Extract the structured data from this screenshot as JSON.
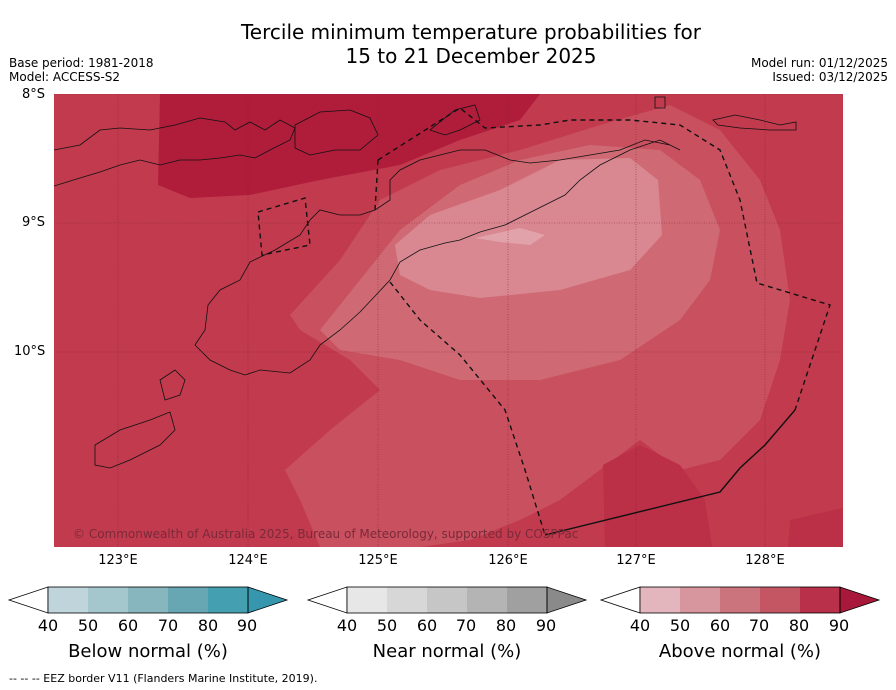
{
  "title": {
    "line1": "Tercile minimum temperature probabilities for",
    "line2": "15 to 21 December 2025"
  },
  "meta": {
    "base_period": "Base period: 1981-2018",
    "model": "Model: ACCESS-S2",
    "model_run": "Model run: 01/12/2025",
    "issued": "Issued: 03/12/2025"
  },
  "map": {
    "lat_labels": [
      "8°S",
      "9°S",
      "10°S"
    ],
    "lon_labels": [
      "123°E",
      "124°E",
      "125°E",
      "126°E",
      "127°E",
      "128°E"
    ],
    "copyright": "© Commonwealth of Australia 2025, Bureau of Meteorology, supported by COSPPac",
    "colors": {
      "ocean_base": "#c13a4d",
      "darker": "#b01d3b",
      "pink_mid": "#c9505f",
      "pink_light": "#cf6a74",
      "pink_lightest": "#d98892"
    }
  },
  "colorbars": [
    {
      "label": "Below normal (%)",
      "ticks": [
        "40",
        "50",
        "60",
        "70",
        "80",
        "90"
      ],
      "colors": [
        "#bfd5db",
        "#a4c7cd",
        "#87b6bf",
        "#66a7b3",
        "#44a0b0",
        "#3596ad"
      ]
    },
    {
      "label": "Near normal (%)",
      "ticks": [
        "40",
        "50",
        "60",
        "70",
        "80",
        "90"
      ],
      "colors": [
        "#e7e7e7",
        "#d7d7d7",
        "#c6c6c6",
        "#b4b4b4",
        "#a0a0a0",
        "#8a8a8a"
      ]
    },
    {
      "label": "Above normal (%)",
      "ticks": [
        "40",
        "50",
        "60",
        "70",
        "80",
        "90"
      ],
      "colors": [
        "#e2b6bc",
        "#d7959d",
        "#cc747e",
        "#c45663",
        "#b83049",
        "#a8183a"
      ]
    }
  ],
  "footer": "--  --  -- EEZ border V11 (Flanders Marine Institute, 2019)."
}
